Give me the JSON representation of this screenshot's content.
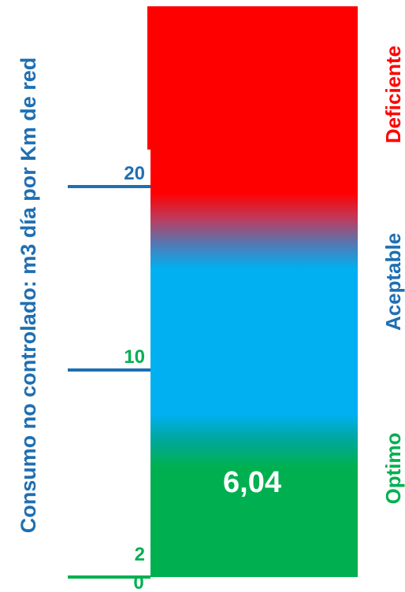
{
  "chart_data": {
    "type": "gauge",
    "ylabel": "Consumo no controlado: m3 día por Km de red",
    "value": 6.04,
    "value_label": "6,04",
    "ticks": [
      {
        "value": 0,
        "label": "0",
        "color": "#00b050"
      },
      {
        "value": 2,
        "label": "2",
        "color": "#00b050"
      },
      {
        "value": 10,
        "label": "10",
        "color": "#00b050"
      },
      {
        "value": 20,
        "label": "20",
        "color": "#1f6fb2"
      }
    ],
    "zones": [
      {
        "name": "Optimo",
        "color": "#00b050"
      },
      {
        "name": "Aceptable",
        "color": "#1f6fb2"
      },
      {
        "name": "Deficiente",
        "color": "#ff0000"
      }
    ],
    "bar_colors": {
      "green": "#00b050",
      "blue": "#00b0f0",
      "red": "#ff0000"
    },
    "axis_color": "#1f6fb2"
  }
}
